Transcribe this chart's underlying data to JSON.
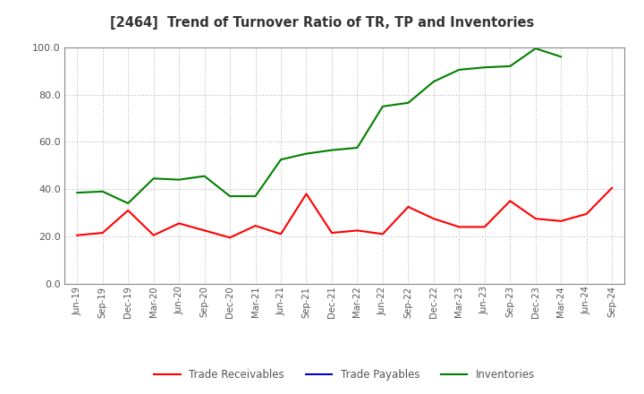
{
  "title": "[2464]  Trend of Turnover Ratio of TR, TP and Inventories",
  "labels": [
    "Jun-19",
    "Sep-19",
    "Dec-19",
    "Mar-20",
    "Jun-20",
    "Sep-20",
    "Dec-20",
    "Mar-21",
    "Jun-21",
    "Sep-21",
    "Dec-21",
    "Mar-22",
    "Jun-22",
    "Sep-22",
    "Dec-22",
    "Mar-23",
    "Jun-23",
    "Sep-23",
    "Dec-23",
    "Mar-24",
    "Jun-24",
    "Sep-24"
  ],
  "trade_receivables": [
    20.5,
    21.5,
    31.0,
    20.5,
    25.5,
    22.5,
    19.5,
    24.5,
    21.0,
    38.0,
    21.5,
    22.5,
    21.0,
    32.5,
    27.5,
    24.0,
    24.0,
    35.0,
    27.5,
    26.5,
    29.5,
    40.5
  ],
  "trade_payables": [
    null,
    null,
    null,
    null,
    null,
    null,
    null,
    null,
    null,
    null,
    null,
    null,
    null,
    null,
    null,
    null,
    null,
    null,
    null,
    null,
    null,
    null
  ],
  "inventories": [
    38.5,
    39.0,
    34.0,
    44.5,
    44.0,
    45.5,
    37.0,
    37.0,
    52.5,
    55.0,
    56.5,
    57.5,
    75.0,
    76.5,
    85.5,
    90.5,
    91.5,
    92.0,
    99.5,
    96.0,
    null,
    null
  ],
  "ylim": [
    0.0,
    100.0
  ],
  "yticks": [
    0.0,
    20.0,
    40.0,
    60.0,
    80.0,
    100.0
  ],
  "tr_color": "#ff0000",
  "tp_color": "#0000cd",
  "inv_color": "#008000",
  "legend_labels": [
    "Trade Receivables",
    "Trade Payables",
    "Inventories"
  ],
  "bg_color": "#ffffff",
  "grid_color": "#aaaaaa",
  "title_color": "#333333",
  "tick_color": "#555555",
  "spine_color": "#888888"
}
